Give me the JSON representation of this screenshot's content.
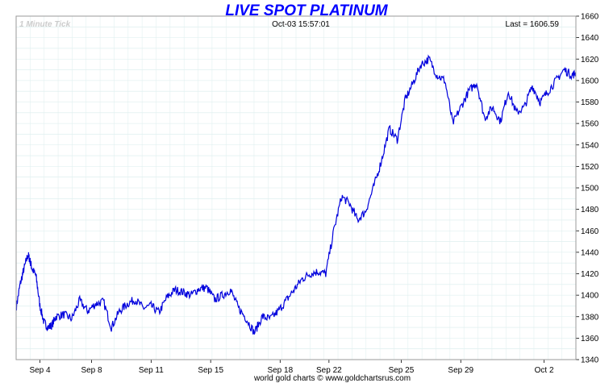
{
  "chart_data": {
    "type": "line",
    "title": "LIVE SPOT PLATINUM",
    "interval_label": "1 Minute Tick",
    "timestamp": "Oct-03  15:57:01",
    "last_label": "Last = 1606.59",
    "footer": "world gold charts © www.goldchartsrus.com",
    "ylim": [
      1340,
      1660
    ],
    "y_ticks": [
      1340,
      1360,
      1380,
      1400,
      1420,
      1440,
      1460,
      1480,
      1500,
      1520,
      1540,
      1560,
      1580,
      1600,
      1620,
      1640,
      1660
    ],
    "x_ticks": [
      {
        "label": "Sep 4",
        "t": 0.06
      },
      {
        "label": "Sep 8",
        "t": 0.19
      },
      {
        "label": "Sep 11",
        "t": 0.34
      },
      {
        "label": "Sep 15",
        "t": 0.49
      },
      {
        "label": "Sep 18",
        "t": 0.665
      },
      {
        "label": "Sep 22",
        "t": 0.788
      },
      {
        "label": "Sep 25",
        "t": 0.97
      },
      {
        "label": "Sep 29",
        "t": 1.12
      },
      {
        "label": "Oct 2",
        "t": 1.33
      }
    ],
    "series": [
      {
        "color": "#0000dd",
        "x": [
          0.0,
          0.01,
          0.02,
          0.03,
          0.035,
          0.04,
          0.05,
          0.06,
          0.07,
          0.08,
          0.09,
          0.1,
          0.12,
          0.14,
          0.16,
          0.18,
          0.2,
          0.22,
          0.24,
          0.26,
          0.28,
          0.3,
          0.32,
          0.34,
          0.36,
          0.38,
          0.4,
          0.42,
          0.44,
          0.46,
          0.48,
          0.5,
          0.52,
          0.54,
          0.56,
          0.58,
          0.6,
          0.62,
          0.64,
          0.66,
          0.68,
          0.7,
          0.72,
          0.74,
          0.76,
          0.78,
          0.8,
          0.82,
          0.84,
          0.86,
          0.88,
          0.9,
          0.92,
          0.94,
          0.96,
          0.98,
          1.0,
          1.02,
          1.04,
          1.06,
          1.08,
          1.1,
          1.12,
          1.14,
          1.16,
          1.18,
          1.2,
          1.22,
          1.24,
          1.26,
          1.28,
          1.3,
          1.32,
          1.34,
          1.36,
          1.38,
          1.4,
          1.41
        ],
        "y": [
          1388,
          1410,
          1425,
          1438,
          1432,
          1425,
          1418,
          1390,
          1375,
          1370,
          1372,
          1380,
          1382,
          1378,
          1395,
          1385,
          1392,
          1394,
          1370,
          1385,
          1392,
          1396,
          1388,
          1390,
          1384,
          1398,
          1405,
          1403,
          1400,
          1406,
          1407,
          1396,
          1400,
          1405,
          1388,
          1378,
          1365,
          1380,
          1378,
          1385,
          1395,
          1405,
          1415,
          1420,
          1422,
          1420,
          1460,
          1492,
          1485,
          1470,
          1478,
          1500,
          1525,
          1555,
          1545,
          1582,
          1598,
          1615,
          1620,
          1605,
          1600,
          1560,
          1575,
          1590,
          1598,
          1565,
          1575,
          1562,
          1590,
          1570,
          1575,
          1595,
          1580,
          1590,
          1600,
          1610,
          1605,
          1606.59
        ]
      }
    ],
    "grid": true
  }
}
